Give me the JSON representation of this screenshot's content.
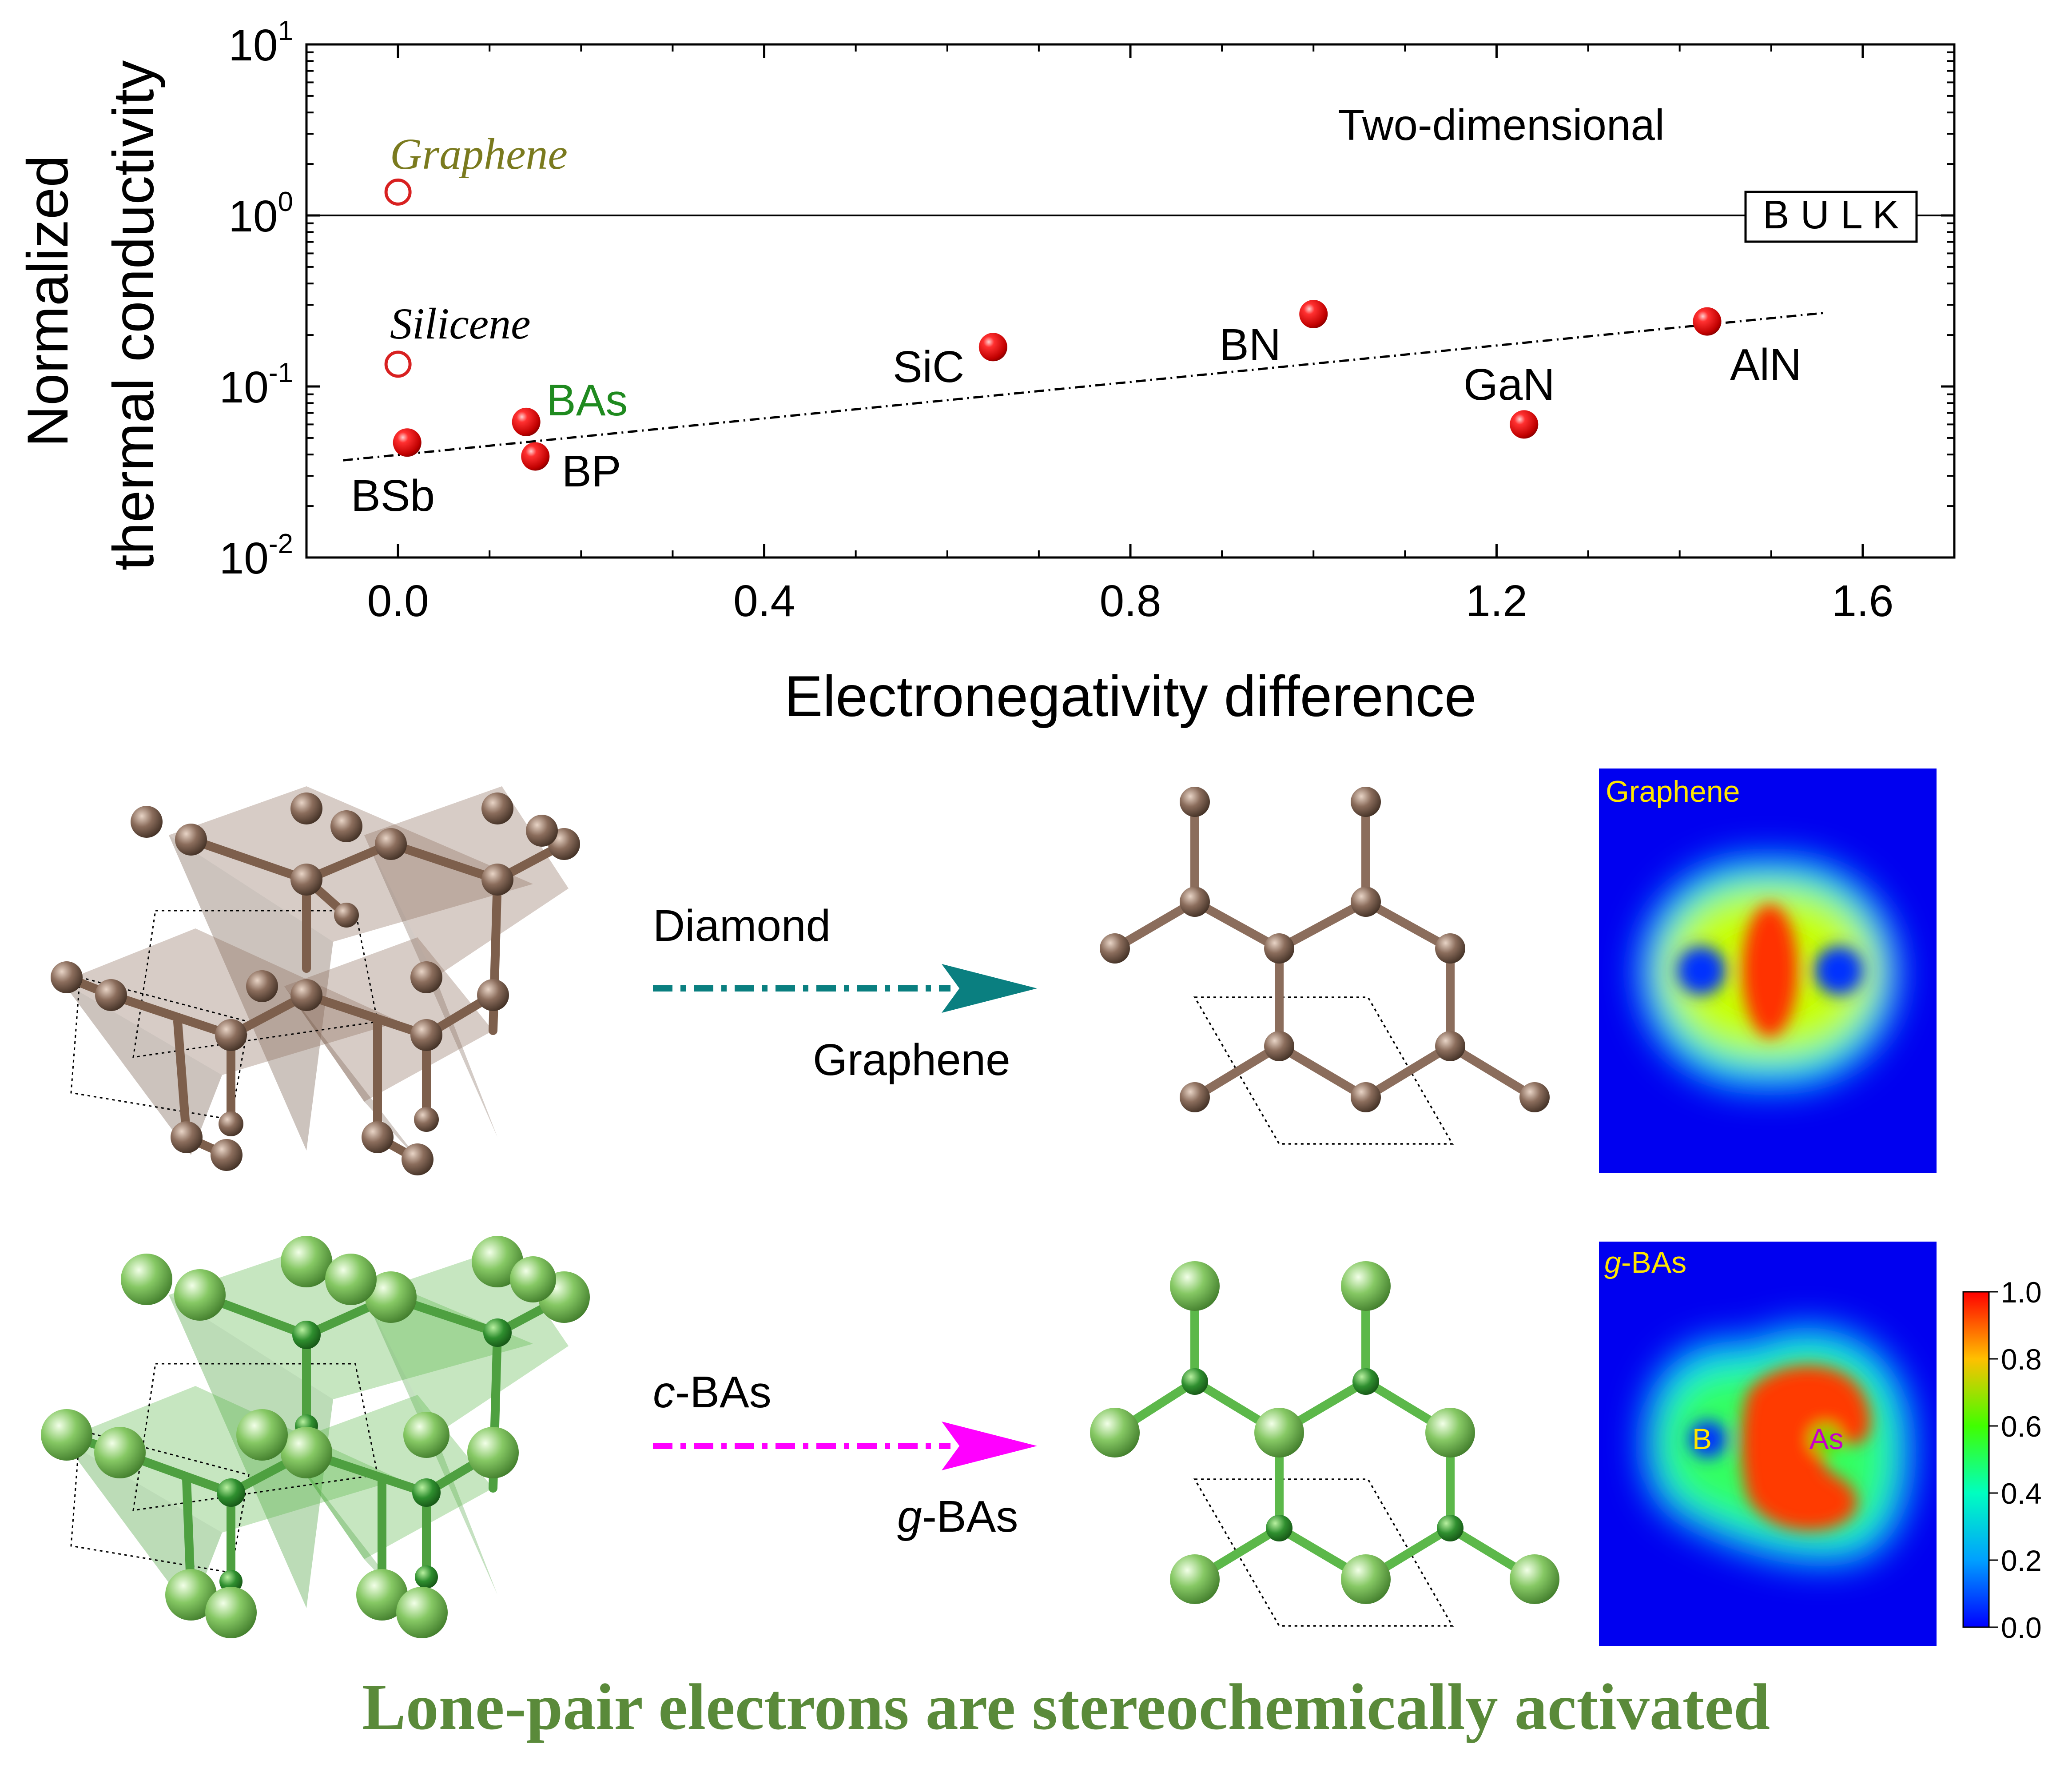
{
  "colors": {
    "filled_marker": "#e00000",
    "open_marker": "#d82020",
    "graphene_label": "#7a7a1e",
    "bas_label": "#1f8a1f",
    "teal_arrow": "#0a7f80",
    "magenta_arrow": "#ff00ff",
    "carbon_atom": "#8b6d5c",
    "green_atom": "#7fc45a",
    "caption": "#5a8a3a",
    "map_label": "#ffe600",
    "as_label": "#c800c8"
  },
  "chart_data": {
    "type": "scatter",
    "x_scale": "linear",
    "y_scale": "log",
    "xlabel": "Electronegativity difference",
    "ylabel_line1": "Normalized",
    "ylabel_line2": "thermal conductivity",
    "xlim": [
      -0.1,
      1.7
    ],
    "ylim": [
      0.01,
      10
    ],
    "x_ticks": [
      0.0,
      0.4,
      0.8,
      1.2,
      1.6
    ],
    "x_tick_labels": [
      "0.0",
      "0.4",
      "0.8",
      "1.2",
      "1.6"
    ],
    "y_ticks": [
      0.01,
      0.1,
      1,
      10
    ],
    "y_tick_bases": [
      "10",
      "10",
      "10",
      "10"
    ],
    "y_tick_exps": [
      "-2",
      "-1",
      "0",
      "1"
    ],
    "reference_line": {
      "y": 1.0,
      "label": "B U L K"
    },
    "region_label": "Two-dimensional",
    "trend_line": {
      "x": [
        -0.06,
        1.56
      ],
      "y": [
        0.037,
        0.27
      ],
      "style": "dashed"
    },
    "points": [
      {
        "name": "Graphene",
        "x": 0.0,
        "y": 1.37,
        "marker": "open"
      },
      {
        "name": "Silicene",
        "x": 0.0,
        "y": 0.135,
        "marker": "open"
      },
      {
        "name": "BSb",
        "x": 0.01,
        "y": 0.047,
        "marker": "filled"
      },
      {
        "name": "BAs",
        "x": 0.14,
        "y": 0.062,
        "marker": "filled"
      },
      {
        "name": "BP",
        "x": 0.15,
        "y": 0.039,
        "marker": "filled"
      },
      {
        "name": "SiC",
        "x": 0.65,
        "y": 0.17,
        "marker": "filled"
      },
      {
        "name": "BN",
        "x": 1.0,
        "y": 0.265,
        "marker": "filled"
      },
      {
        "name": "GaN",
        "x": 1.23,
        "y": 0.06,
        "marker": "filled"
      },
      {
        "name": "AlN",
        "x": 1.43,
        "y": 0.24,
        "marker": "filled"
      }
    ]
  },
  "diagrams": {
    "row1": {
      "arrow_top_label": "Diamond",
      "arrow_bottom_label": "Graphene",
      "map_label": "Graphene"
    },
    "row2": {
      "arrow_top_italic": "c",
      "arrow_top_rest": "-BAs",
      "arrow_bottom_italic": "g",
      "arrow_bottom_rest": "-BAs",
      "map_label_italic": "g",
      "map_label_rest": "-BAs",
      "atom_label_b": "B",
      "atom_label_as": "As"
    },
    "colorbar": {
      "min": 0.0,
      "max": 1.0,
      "tick_labels": [
        "1.0",
        "0.8",
        "0.6",
        "0.4",
        "0.2",
        "0.0"
      ]
    }
  },
  "caption": "Lone-pair electrons are stereochemically activated"
}
